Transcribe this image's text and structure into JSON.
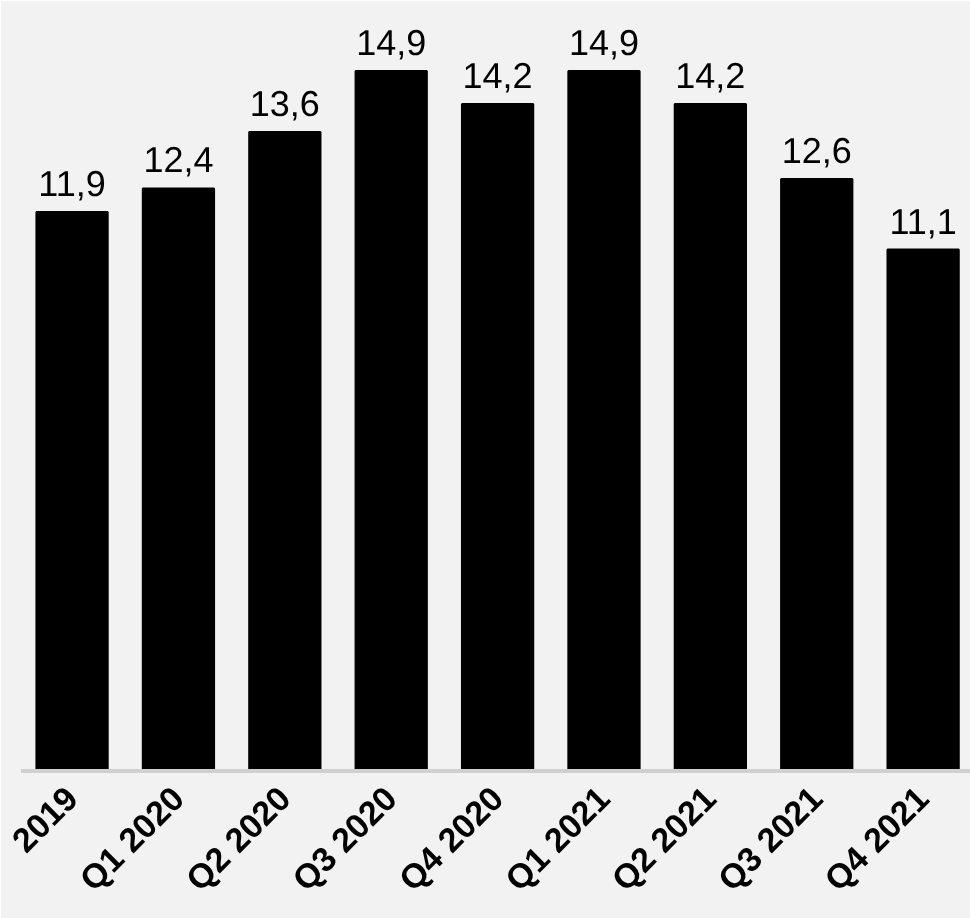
{
  "chart_data": {
    "type": "bar",
    "categories": [
      "2019",
      "Q1 2020",
      "Q2 2020",
      "Q3 2020",
      "Q4 2020",
      "Q1 2021",
      "Q2 2021",
      "Q3 2021",
      "Q4 2021"
    ],
    "values": [
      11.9,
      12.4,
      13.6,
      14.9,
      14.2,
      14.9,
      14.2,
      12.6,
      11.1
    ],
    "color": "#000000",
    "value_labels": [
      "11,9",
      "12,4",
      "13,6",
      "14,9",
      "14,2",
      "14,9",
      "14,2",
      "12,6",
      "11,1"
    ],
    "data_labels": true
  }
}
